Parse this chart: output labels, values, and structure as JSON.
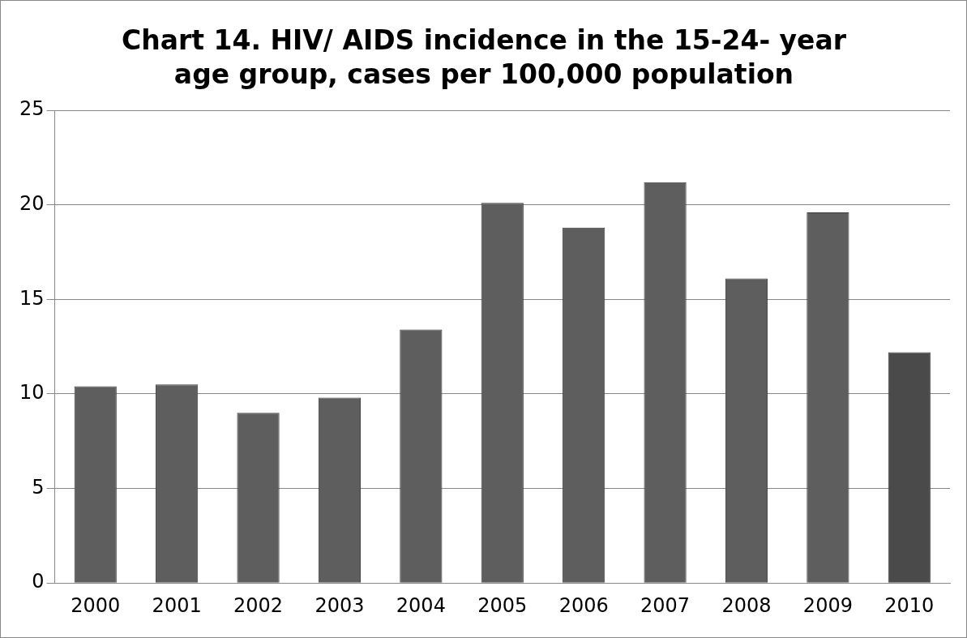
{
  "chart_data": {
    "type": "bar",
    "title": "Chart 14. HIV/ AIDS incidence in the 15-24- year age group, cases per 100,000 population",
    "categories": [
      "2000",
      "2001",
      "2002",
      "2003",
      "2004",
      "2005",
      "2006",
      "2007",
      "2008",
      "2009",
      "2010"
    ],
    "values": [
      10.4,
      10.5,
      9.0,
      9.8,
      13.4,
      20.1,
      18.8,
      21.2,
      16.1,
      19.6,
      12.2
    ],
    "colors": [
      "#5e5e5e",
      "#5e5e5e",
      "#5e5e5e",
      "#5e5e5e",
      "#5e5e5e",
      "#5e5e5e",
      "#5e5e5e",
      "#5e5e5e",
      "#5e5e5e",
      "#5e5e5e",
      "#4a4a4a"
    ],
    "ylim": [
      0,
      25
    ],
    "yticks": [
      0,
      5,
      10,
      15,
      20,
      25
    ],
    "grid": "y",
    "legend": false
  }
}
